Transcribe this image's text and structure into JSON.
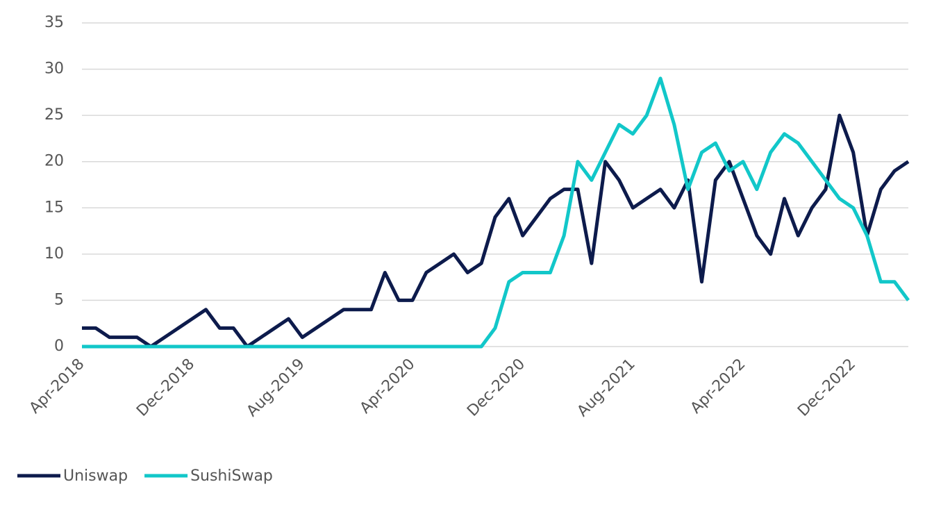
{
  "chart_data": {
    "type": "line",
    "categories": [
      "Apr-2018",
      null,
      null,
      null,
      null,
      null,
      null,
      null,
      "Dec-2018",
      null,
      null,
      null,
      null,
      null,
      null,
      null,
      "Aug-2019",
      null,
      null,
      null,
      null,
      null,
      null,
      null,
      "Apr-2020",
      null,
      null,
      null,
      null,
      null,
      null,
      null,
      "Dec-2020",
      null,
      null,
      null,
      null,
      null,
      null,
      null,
      "Aug-2021",
      null,
      null,
      null,
      null,
      null,
      null,
      null,
      "Apr-2022",
      null,
      null,
      null,
      null,
      null,
      null,
      null,
      "Dec-2022",
      null,
      null,
      null,
      null
    ],
    "series": [
      {
        "name": "Uniswap",
        "color": "#0d1b4c",
        "values": [
          2,
          2,
          1,
          1,
          1,
          0,
          1,
          2,
          3,
          4,
          2,
          2,
          0,
          1,
          2,
          3,
          1,
          2,
          3,
          4,
          4,
          4,
          8,
          5,
          5,
          8,
          9,
          10,
          8,
          9,
          14,
          16,
          12,
          14,
          16,
          17,
          17,
          9,
          20,
          18,
          15,
          16,
          17,
          15,
          18,
          7,
          18,
          20,
          16,
          12,
          10,
          16,
          12,
          15,
          17,
          25,
          21,
          12,
          17,
          19,
          20
        ]
      },
      {
        "name": "SushiSwap",
        "color": "#12c7c9",
        "values": [
          0,
          0,
          0,
          0,
          0,
          0,
          0,
          0,
          0,
          0,
          0,
          0,
          0,
          0,
          0,
          0,
          0,
          0,
          0,
          0,
          0,
          0,
          0,
          0,
          0,
          0,
          0,
          0,
          0,
          0,
          2,
          7,
          8,
          8,
          8,
          12,
          20,
          18,
          21,
          24,
          23,
          25,
          29,
          24,
          17,
          21,
          22,
          19,
          20,
          17,
          21,
          23,
          22,
          20,
          18,
          16,
          15,
          12,
          7,
          7,
          5
        ]
      }
    ],
    "ylim": [
      0,
      35
    ],
    "yticks": [
      0,
      5,
      10,
      15,
      20,
      25,
      30,
      35
    ],
    "grid": true
  }
}
